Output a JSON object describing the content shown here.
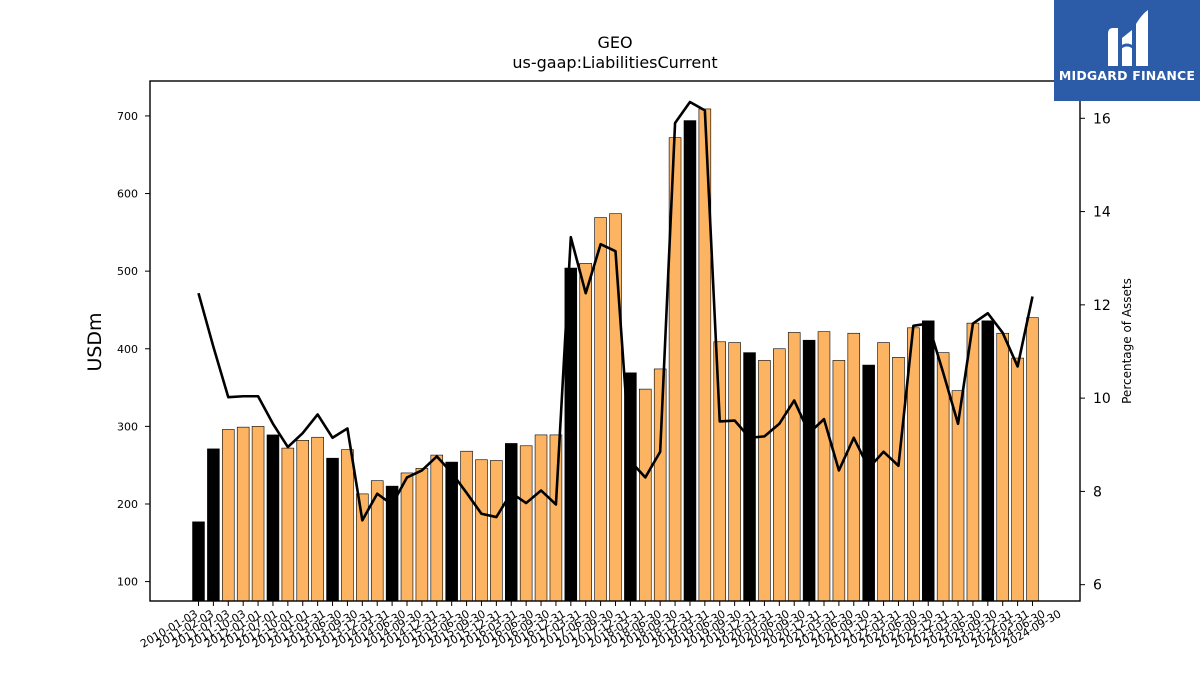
{
  "chart_data": {
    "type": "bar",
    "title": "GEO",
    "subtitle": "us-gaap:LiabilitiesCurrent",
    "ylabel": "USDm",
    "y2label": "Percentage of Assets",
    "ylim": [
      75,
      745
    ],
    "y2lim": [
      5.65,
      16.8
    ],
    "yticks": [
      100,
      200,
      300,
      400,
      500,
      600,
      700
    ],
    "y2ticks": [
      6,
      8,
      10,
      12,
      14,
      16
    ],
    "grid": false,
    "series_colors": {
      "annual_bar": "#000000",
      "quarter_bar": "#fdb462",
      "line": "#000000"
    },
    "categories": [
      "2010-01-03",
      "2010-12-31",
      "2011-04-03",
      "2011-07-03",
      "2011-10-02",
      "2011-12-31",
      "2012-04-01",
      "2012-07-01",
      "2012-09-30",
      "2012-12-31",
      "2013-03-31",
      "2013-06-30",
      "2013-09-30",
      "2013-12-31",
      "2014-03-31",
      "2014-06-30",
      "2014-09-30",
      "2014-12-31",
      "2015-03-31",
      "2015-06-30",
      "2015-09-30",
      "2015-12-31",
      "2016-03-31",
      "2016-06-30",
      "2016-09-30",
      "2016-12-31",
      "2017-03-31",
      "2017-06-30",
      "2017-09-30",
      "2017-12-31",
      "2018-03-31",
      "2018-06-30",
      "2018-09-30",
      "2018-12-31",
      "2019-03-31",
      "2019-06-30",
      "2019-09-30",
      "2019-12-31",
      "2020-03-31",
      "2020-06-30",
      "2020-09-30",
      "2020-12-31",
      "2021-03-31",
      "2021-06-30",
      "2021-09-30",
      "2021-12-31",
      "2022-03-31",
      "2022-06-30",
      "2022-09-30",
      "2022-12-31",
      "2023-03-31",
      "2023-06-30",
      "2023-09-30",
      "2023-12-31",
      "2024-03-31",
      "2024-06-30",
      "2024-09-30"
    ],
    "xtick_labels": [
      "2010-01-03",
      "2011-02-03",
      "2011-07-03",
      "2011-10-03",
      "2012-01-01",
      "2012-07-01",
      "2012-10-01",
      "2013-01-01",
      "2013-03-31",
      "2013-06-30",
      "2013-09-30",
      "2013-12-31",
      "2014-03-31",
      "2014-06-30",
      "2014-09-30",
      "2014-12-31",
      "2015-03-31",
      "2015-06-30",
      "2015-09-30",
      "2015-12-31",
      "2016-03-31",
      "2016-06-30",
      "2016-09-30",
      "2016-12-31",
      "2017-03-31",
      "2017-06-30",
      "2017-09-30",
      "2017-12-31",
      "2018-03-31",
      "2018-06-30",
      "2018-09-30",
      "2018-12-31",
      "2019-03-31",
      "2019-06-30",
      "2019-09-30",
      "2019-12-31",
      "2020-03-31",
      "2020-06-30",
      "2020-09-30",
      "2020-12-31",
      "2021-03-31",
      "2021-06-30",
      "2021-09-30",
      "2021-12-31",
      "2022-03-31",
      "2022-06-30",
      "2022-09-30",
      "2022-12-31",
      "2023-03-31",
      "2023-06-30",
      "2023-09-30",
      "2023-12-31",
      "2024-03-31",
      "2024-06-30",
      "2024-09-30"
    ],
    "bar_values": [
      177,
      271,
      296,
      299,
      300,
      289,
      272,
      282,
      286,
      259,
      270,
      213,
      230,
      223,
      240,
      246,
      263,
      254,
      268,
      257,
      256,
      278,
      275,
      289,
      289,
      504,
      510,
      569,
      574,
      369,
      348,
      374,
      672,
      694,
      709,
      409,
      408,
      395,
      385,
      400,
      421,
      411,
      422,
      385,
      420,
      379,
      408,
      389,
      427,
      436,
      395,
      346,
      433,
      436,
      420,
      388,
      440
    ],
    "bar_is_annual": [
      1,
      1,
      0,
      0,
      0,
      1,
      0,
      0,
      0,
      1,
      0,
      0,
      0,
      1,
      0,
      0,
      0,
      1,
      0,
      0,
      0,
      1,
      0,
      0,
      0,
      1,
      0,
      0,
      0,
      1,
      0,
      0,
      0,
      1,
      0,
      0,
      0,
      1,
      0,
      0,
      0,
      1,
      0,
      0,
      0,
      1,
      0,
      0,
      0,
      1,
      0,
      0,
      0,
      1,
      0,
      0,
      0
    ],
    "pct_values": [
      12.25,
      11.1,
      10.02,
      10.04,
      10.04,
      9.45,
      8.95,
      9.25,
      9.65,
      9.15,
      9.35,
      7.38,
      7.95,
      7.72,
      8.3,
      8.45,
      8.75,
      8.4,
      7.97,
      7.52,
      7.45,
      7.97,
      7.75,
      8.02,
      7.72,
      13.45,
      12.25,
      13.3,
      13.15,
      8.65,
      8.3,
      8.85,
      15.9,
      16.35,
      16.17,
      9.5,
      9.52,
      9.15,
      9.18,
      9.45,
      9.95,
      9.25,
      9.55,
      8.45,
      9.15,
      8.5,
      8.85,
      8.55,
      11.55,
      11.6,
      10.55,
      9.45,
      11.6,
      11.82,
      11.4,
      10.68,
      12.18
    ]
  },
  "brand": {
    "name": "MIDGARD FINANCE",
    "bg_color": "#2c5ba8"
  }
}
